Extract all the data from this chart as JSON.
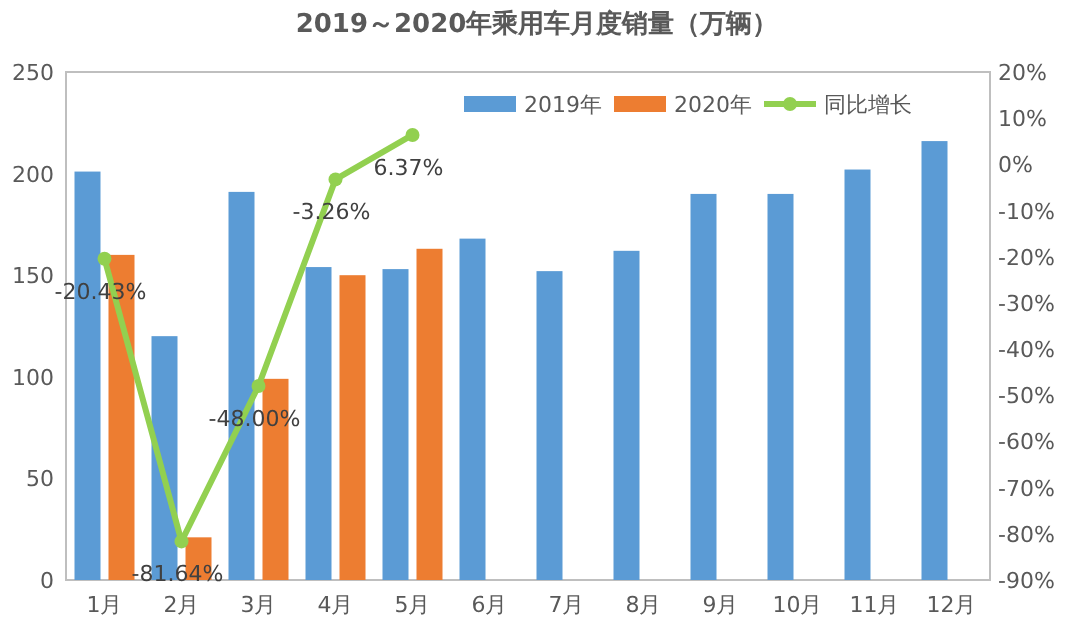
{
  "chart_data": {
    "type": "bar",
    "title": "2019～2020年乘用车月度销量（万辆）",
    "categories": [
      "1月",
      "2月",
      "3月",
      "4月",
      "5月",
      "6月",
      "7月",
      "8月",
      "9月",
      "10月",
      "11月",
      "12月"
    ],
    "series": [
      {
        "name": "2019年",
        "color": "#5b9bd5",
        "values": [
          201,
          120,
          191,
          154,
          153,
          168,
          152,
          162,
          190,
          190,
          202,
          216
        ]
      },
      {
        "name": "2020年",
        "color": "#ed7d31",
        "values": [
          160,
          21,
          99,
          150,
          163,
          null,
          null,
          null,
          null,
          null,
          null,
          null
        ]
      },
      {
        "name": "同比增长",
        "type": "line",
        "axis": "y2",
        "color": "#92d050",
        "marker": "circle",
        "values": [
          -20.43,
          -81.64,
          -48.0,
          -3.26,
          6.37,
          null,
          null,
          null,
          null,
          null,
          null,
          null
        ],
        "value_labels": [
          "-20.43%",
          "-81.64%",
          "-48.00%",
          "-3.26%",
          "6.37%",
          null,
          null,
          null,
          null,
          null,
          null,
          null
        ]
      }
    ],
    "ylim": [
      0,
      250
    ],
    "yticks": [
      0,
      50,
      100,
      150,
      200,
      250
    ],
    "y2lim": [
      -90,
      20
    ],
    "y2ticks": [
      {
        "value": -90,
        "label": "-90%"
      },
      {
        "value": -80,
        "label": "-80%"
      },
      {
        "value": -70,
        "label": "-70%"
      },
      {
        "value": -60,
        "label": "-60%"
      },
      {
        "value": -50,
        "label": "-50%"
      },
      {
        "value": -40,
        "label": "-40%"
      },
      {
        "value": -30,
        "label": "-30%"
      },
      {
        "value": -20,
        "label": "-20%"
      },
      {
        "value": -10,
        "label": "-10%"
      },
      {
        "value": 0,
        "label": "0%"
      },
      {
        "value": 10,
        "label": "10%"
      },
      {
        "value": 20,
        "label": "20%"
      }
    ],
    "grid": false,
    "legend": "top right"
  }
}
